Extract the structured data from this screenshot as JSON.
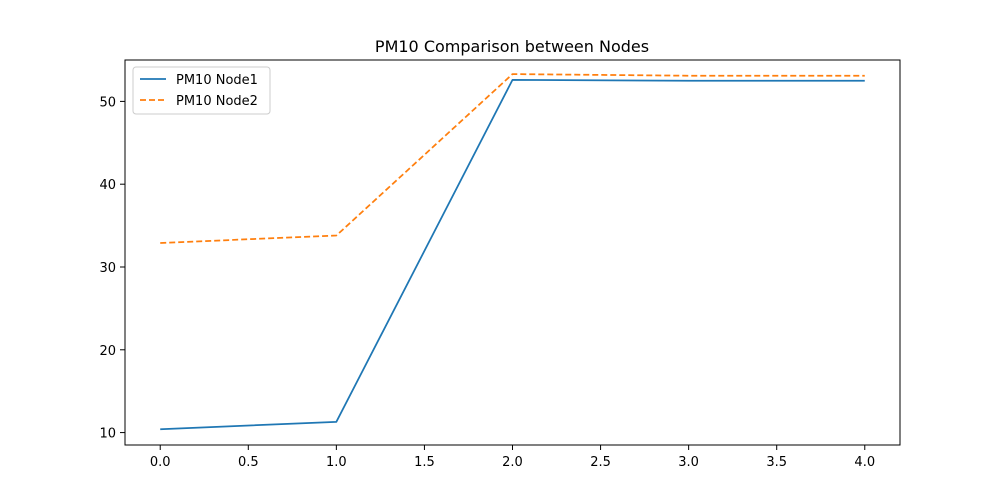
{
  "chart_data": {
    "type": "line",
    "title": "PM10 Comparison between Nodes",
    "xlabel": "",
    "ylabel": "",
    "xlim": [
      -0.2,
      4.2
    ],
    "ylim": [
      8.5,
      55.0
    ],
    "x_ticks": [
      0.0,
      0.5,
      1.0,
      1.5,
      2.0,
      2.5,
      3.0,
      3.5,
      4.0
    ],
    "x_tick_labels": [
      "0.0",
      "0.5",
      "1.0",
      "1.5",
      "2.0",
      "2.5",
      "3.0",
      "3.5",
      "4.0"
    ],
    "y_ticks": [
      10,
      20,
      30,
      40,
      50
    ],
    "y_tick_labels": [
      "10",
      "20",
      "30",
      "40",
      "50"
    ],
    "grid": false,
    "legend_position": "top-left",
    "series": [
      {
        "name": "PM10 Node1",
        "color": "#1f77b4",
        "linestyle": "solid",
        "x": [
          0,
          1,
          2,
          3,
          4
        ],
        "values": [
          10.4,
          11.3,
          52.6,
          52.5,
          52.5
        ]
      },
      {
        "name": "PM10 Node2",
        "color": "#ff7f0e",
        "linestyle": "dashed",
        "x": [
          0,
          1,
          2,
          3,
          4
        ],
        "values": [
          32.9,
          33.8,
          53.3,
          53.1,
          53.1
        ]
      }
    ]
  }
}
